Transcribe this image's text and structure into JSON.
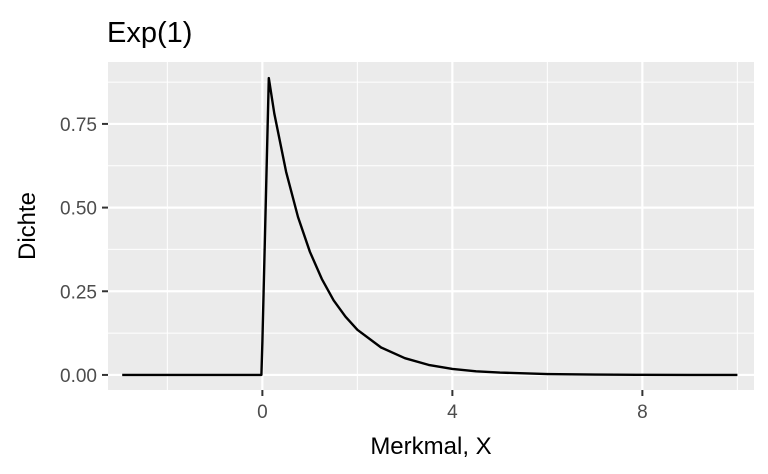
{
  "chart_data": {
    "type": "line",
    "title": "Exp(1)",
    "xlabel": "Merkmal, X",
    "ylabel": "Dichte",
    "xlim": [
      -3.25,
      10.35
    ],
    "ylim": [
      -0.045,
      0.935
    ],
    "x_ticks": [
      0,
      4,
      8
    ],
    "x_tick_labels": [
      "0",
      "4",
      "8"
    ],
    "y_ticks": [
      0,
      0.25,
      0.5,
      0.75
    ],
    "y_tick_labels": [
      "0.00",
      "0.25",
      "0.50",
      "0.75"
    ],
    "grid": true,
    "legend": "none",
    "series": [
      {
        "x": [
          -2.95,
          -0.02,
          0,
          0.135,
          0.25,
          0.5,
          0.75,
          1,
          1.25,
          1.5,
          1.75,
          2,
          2.5,
          3,
          3.5,
          4,
          4.5,
          5,
          6,
          7,
          8,
          9,
          10
        ],
        "values": [
          0,
          0,
          0.1,
          0.887,
          0.781,
          0.607,
          0.472,
          0.368,
          0.287,
          0.223,
          0.174,
          0.135,
          0.082,
          0.05,
          0.03,
          0.018,
          0.011,
          0.007,
          0.0025,
          0.0009,
          0.0003,
          0.0001,
          0.0
        ]
      }
    ]
  },
  "colors": {
    "panel_background": "#EBEBEB",
    "grid_major": "#FFFFFF",
    "line": "#000000",
    "axis_text": "#4D4D4D"
  }
}
